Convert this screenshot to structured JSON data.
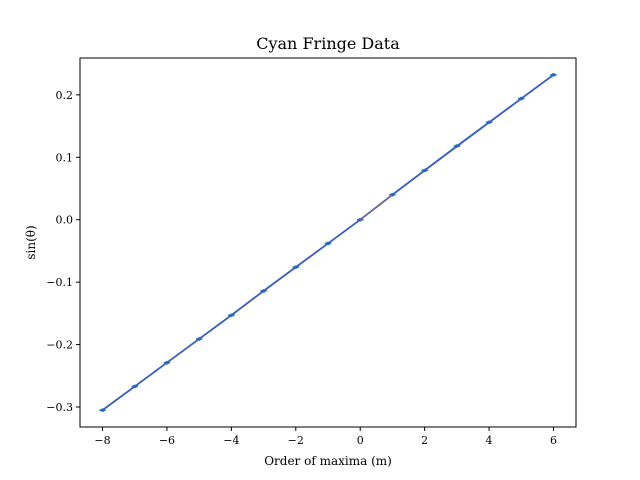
{
  "chart_data": {
    "type": "line",
    "title": "Cyan Fringe Data",
    "xlabel": "Order of maxima (m)",
    "ylabel": "sin(θ)",
    "xlim": [
      -8.7,
      6.7
    ],
    "ylim": [
      -0.332,
      0.259
    ],
    "xticks": [
      -8,
      -6,
      -4,
      -2,
      0,
      2,
      4,
      6
    ],
    "yticks": [
      -0.3,
      -0.2,
      -0.1,
      0.0,
      0.1,
      0.2
    ],
    "xtick_labels": [
      "−8",
      "−6",
      "−4",
      "−2",
      "0",
      "2",
      "4",
      "6"
    ],
    "ytick_labels": [
      "−0.3",
      "−0.2",
      "−0.1",
      "0.0",
      "0.1",
      "0.2"
    ],
    "grid": false,
    "series": [
      {
        "kind": "errorbar-points",
        "color": "#1f77b4",
        "x": [
          -8,
          -7,
          -6,
          -5,
          -4,
          -3,
          -2,
          -1,
          0,
          1,
          2,
          3,
          4,
          5,
          6
        ],
        "y": [
          -0.305,
          -0.267,
          -0.229,
          -0.191,
          -0.153,
          -0.114,
          -0.076,
          -0.038,
          0.0,
          0.04,
          0.079,
          0.118,
          0.156,
          0.194,
          0.232
        ],
        "xerr": 0.1
      },
      {
        "kind": "connecting-line",
        "color": "#1f77b4",
        "x": [
          -8,
          -7,
          -6,
          -5,
          -4,
          -3,
          -2,
          -1,
          0,
          1,
          2,
          3,
          4,
          5,
          6
        ],
        "y": [
          -0.305,
          -0.267,
          -0.229,
          -0.191,
          -0.153,
          -0.114,
          -0.076,
          -0.038,
          0.0,
          0.04,
          0.079,
          0.118,
          0.156,
          0.194,
          0.232
        ]
      },
      {
        "kind": "fit-line",
        "color": "#4c4cd0",
        "x": [
          -8,
          0
        ],
        "y": [
          -0.305,
          0.0
        ]
      },
      {
        "kind": "fit-line",
        "color": "#9d5c84",
        "x": [
          0,
          1
        ],
        "y": [
          0.0,
          0.04
        ]
      },
      {
        "kind": "fit-line",
        "color": "#4c4cd0",
        "x": [
          1,
          6
        ],
        "y": [
          0.04,
          0.232
        ]
      }
    ]
  }
}
